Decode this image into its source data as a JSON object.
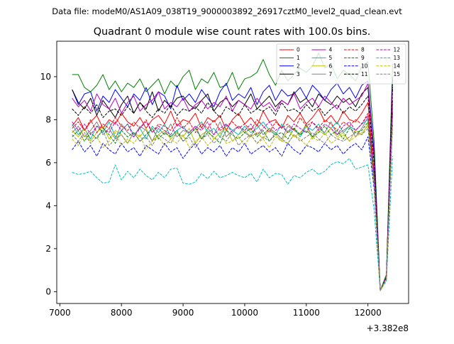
{
  "figure": {
    "suptitle": "Data file: modeM0/AS1A09_038T19_9000003892_26917cztM0_level2_quad_clean.evt"
  },
  "chart_data": {
    "type": "line",
    "title": "Quadrant 0 module wise count rates with 100.0s bins.",
    "xlabel": "",
    "ylabel": "",
    "x_offset_label": "+3.382e8",
    "xlim": [
      6950,
      12660
    ],
    "ylim": [
      -0.55,
      11.65
    ],
    "xticks": [
      7000,
      8000,
      9000,
      10000,
      11000,
      12000
    ],
    "yticks": [
      0,
      2,
      4,
      6,
      8,
      10
    ],
    "legend_position": "top-right",
    "legend_columns": 4,
    "x": [
      7200,
      7300,
      7400,
      7500,
      7600,
      7700,
      7800,
      7900,
      8000,
      8100,
      8200,
      8300,
      8400,
      8500,
      8600,
      8700,
      8800,
      8900,
      9000,
      9100,
      9200,
      9300,
      9400,
      9500,
      9600,
      9700,
      9800,
      9900,
      10000,
      10100,
      10200,
      10300,
      10400,
      10500,
      10600,
      10700,
      10800,
      10900,
      11000,
      11100,
      11200,
      11300,
      11400,
      11500,
      11600,
      11700,
      11800,
      11900,
      12000,
      12100,
      12200,
      12300,
      12400
    ],
    "series": [
      {
        "name": "0",
        "color": "#ff0000",
        "dash": "solid",
        "values": [
          7.7,
          8.1,
          7.5,
          7.9,
          8.2,
          7.6,
          8.0,
          7.8,
          8.3,
          7.9,
          7.7,
          8.1,
          7.6,
          8.0,
          8.2,
          7.8,
          8.4,
          7.7,
          8.0,
          7.9,
          8.3,
          7.6,
          8.1,
          7.9,
          8.2,
          7.5,
          8.0,
          8.3,
          7.8,
          8.1,
          7.7,
          8.4,
          7.9,
          8.0,
          7.6,
          8.2,
          7.9,
          8.3,
          7.8,
          8.1,
          8.5,
          7.9,
          8.2,
          7.8,
          8.4,
          8.0,
          7.9,
          8.3,
          8.8,
          5.5,
          0.05,
          0.7,
          9.8
        ]
      },
      {
        "name": "1",
        "color": "#008000",
        "dash": "solid",
        "values": [
          10.1,
          10.1,
          9.5,
          9.3,
          9.6,
          10.1,
          9.4,
          9.8,
          9.3,
          9.7,
          9.5,
          9.9,
          9.3,
          9.6,
          9.9,
          9.2,
          9.8,
          9.5,
          10.0,
          10.3,
          9.4,
          9.9,
          9.7,
          10.2,
          9.5,
          9.6,
          10.2,
          9.4,
          9.9,
          10.0,
          10.2,
          10.8,
          10.1,
          9.6,
          10.3,
          9.8,
          10.1,
          10.4,
          10.2,
          10.5,
          11.1,
          10.4,
          10.6,
          9.9,
          10.3,
          10.1,
          9.8,
          10.5,
          10.7,
          7.0,
          0.05,
          0.8,
          10.6
        ]
      },
      {
        "name": "2",
        "color": "#0000ff",
        "dash": "solid",
        "values": [
          9.4,
          8.7,
          9.2,
          9.3,
          8.4,
          9.1,
          8.8,
          9.4,
          9.0,
          8.6,
          9.2,
          8.9,
          9.5,
          8.7,
          9.3,
          9.1,
          8.5,
          9.6,
          8.9,
          9.2,
          8.8,
          9.4,
          9.0,
          8.6,
          9.3,
          9.7,
          8.9,
          9.2,
          9.0,
          9.5,
          8.7,
          9.3,
          9.6,
          8.9,
          9.4,
          9.1,
          9.2,
          9.5,
          9.0,
          9.6,
          9.3,
          8.9,
          9.4,
          9.7,
          9.2,
          9.5,
          9.0,
          9.6,
          9.8,
          6.5,
          0.05,
          0.7,
          10.0
        ]
      },
      {
        "name": "3",
        "color": "#000000",
        "dash": "solid",
        "values": [
          9.4,
          8.8,
          8.5,
          9.0,
          8.2,
          8.9,
          8.5,
          8.1,
          8.7,
          9.1,
          8.3,
          8.8,
          8.5,
          9.3,
          8.4,
          8.9,
          8.6,
          9.0,
          9.1,
          8.7,
          8.5,
          8.9,
          9.2,
          8.4,
          8.8,
          9.0,
          8.6,
          8.9,
          8.7,
          9.2,
          8.5,
          8.8,
          9.1,
          8.6,
          8.9,
          8.7,
          9.3,
          8.8,
          9.0,
          8.6,
          9.2,
          8.9,
          8.7,
          9.1,
          8.8,
          9.0,
          8.6,
          9.2,
          9.5,
          6.3,
          0.05,
          0.7,
          9.9
        ]
      },
      {
        "name": "4",
        "color": "#bf00bf",
        "dash": "solid",
        "values": [
          9.0,
          8.6,
          8.9,
          8.4,
          9.2,
          8.7,
          8.5,
          9.0,
          8.3,
          8.8,
          9.1,
          8.4,
          8.7,
          8.9,
          9.3,
          8.5,
          8.8,
          8.6,
          9.0,
          8.4,
          8.7,
          8.9,
          8.5,
          8.8,
          8.6,
          9.1,
          8.4,
          8.9,
          8.7,
          8.5,
          9.0,
          8.6,
          8.8,
          8.4,
          8.9,
          8.7,
          9.2,
          8.5,
          8.8,
          9.0,
          8.6,
          9.1,
          8.8,
          8.5,
          9.0,
          8.7,
          8.9,
          9.1,
          9.7,
          6.2,
          0.05,
          0.7,
          9.7
        ]
      },
      {
        "name": "5",
        "color": "#00bfbf",
        "dash": "solid",
        "values": [
          7.8,
          7.3,
          7.6,
          7.1,
          7.7,
          7.4,
          7.9,
          7.2,
          7.5,
          7.8,
          7.3,
          7.6,
          7.1,
          7.7,
          7.4,
          7.8,
          7.2,
          7.5,
          7.7,
          7.3,
          7.6,
          7.9,
          7.4,
          7.6,
          7.2,
          7.8,
          7.5,
          7.3,
          7.7,
          7.4,
          7.6,
          7.9,
          7.5,
          7.3,
          7.8,
          7.4,
          7.6,
          7.2,
          7.7,
          7.5,
          7.8,
          7.3,
          7.6,
          7.9,
          7.4,
          7.7,
          7.5,
          7.8,
          8.0,
          5.3,
          0.05,
          0.6,
          8.4
        ]
      },
      {
        "name": "6",
        "color": "#bfbf00",
        "dash": "solid",
        "values": [
          7.5,
          7.2,
          7.6,
          7.0,
          7.4,
          7.7,
          7.1,
          7.5,
          7.3,
          6.9,
          7.4,
          7.2,
          7.6,
          7.0,
          7.3,
          7.5,
          7.1,
          7.4,
          7.2,
          7.6,
          6.9,
          7.3,
          7.5,
          7.1,
          7.4,
          7.6,
          7.0,
          7.3,
          7.5,
          7.2,
          7.4,
          7.1,
          7.6,
          7.3,
          7.0,
          7.5,
          7.2,
          7.4,
          7.7,
          7.1,
          7.5,
          7.3,
          7.6,
          7.2,
          7.4,
          7.0,
          7.5,
          7.3,
          7.8,
          5.1,
          0.05,
          0.6,
          8.2
        ]
      },
      {
        "name": "7",
        "color": "#808080",
        "dash": "solid",
        "values": [
          7.4,
          7.7,
          7.2,
          7.5,
          7.9,
          7.3,
          7.6,
          7.1,
          7.8,
          7.4,
          7.2,
          7.7,
          7.5,
          7.0,
          7.6,
          7.3,
          7.8,
          7.2,
          7.5,
          7.4,
          7.7,
          7.1,
          7.6,
          7.3,
          7.9,
          7.2,
          7.5,
          7.7,
          7.4,
          7.2,
          7.8,
          7.3,
          7.6,
          7.4,
          7.1,
          7.7,
          7.5,
          7.3,
          7.8,
          7.2,
          7.6,
          7.4,
          7.9,
          7.3,
          7.5,
          7.7,
          7.2,
          7.6,
          8.1,
          5.4,
          0.05,
          0.7,
          8.6
        ]
      },
      {
        "name": "8",
        "color": "#ff0000",
        "dash": "dashed",
        "values": [
          7.6,
          7.9,
          7.5,
          8.0,
          7.4,
          7.8,
          7.6,
          8.1,
          7.7,
          7.5,
          7.9,
          7.6,
          8.0,
          7.4,
          7.8,
          7.7,
          7.5,
          8.1,
          7.6,
          7.9,
          7.4,
          7.8,
          7.6,
          8.0,
          7.5,
          7.7,
          7.9,
          7.6,
          7.8,
          7.5,
          8.0,
          7.7,
          7.4,
          7.9,
          7.6,
          7.8,
          7.5,
          8.1,
          7.7,
          7.9,
          7.6,
          8.0,
          7.8,
          7.5,
          7.9,
          7.7,
          8.0,
          7.8,
          8.3,
          5.6,
          0.05,
          0.7,
          8.9
        ]
      },
      {
        "name": "9",
        "color": "#008000",
        "dash": "dashed",
        "values": [
          7.2,
          7.5,
          7.0,
          7.4,
          7.1,
          7.6,
          7.3,
          6.9,
          7.5,
          7.2,
          7.4,
          7.0,
          7.3,
          7.6,
          7.1,
          7.4,
          7.2,
          7.5,
          7.0,
          7.3,
          7.6,
          7.1,
          7.4,
          7.2,
          6.9,
          7.5,
          7.3,
          7.1,
          7.4,
          7.6,
          7.2,
          7.5,
          7.0,
          7.3,
          7.4,
          7.1,
          7.6,
          7.3,
          7.5,
          7.2,
          7.4,
          7.7,
          7.3,
          7.5,
          7.1,
          7.6,
          7.4,
          7.5,
          7.9,
          5.2,
          0.05,
          0.6,
          8.3
        ]
      },
      {
        "name": "10",
        "color": "#0000ff",
        "dash": "dashed",
        "values": [
          6.6,
          7.0,
          6.5,
          6.8,
          6.3,
          6.9,
          6.6,
          6.4,
          6.9,
          6.5,
          6.7,
          6.3,
          6.8,
          6.6,
          6.4,
          6.9,
          6.5,
          6.7,
          6.2,
          6.6,
          6.9,
          6.4,
          6.7,
          6.5,
          6.8,
          6.3,
          6.7,
          6.5,
          6.9,
          6.4,
          6.6,
          6.8,
          6.5,
          6.7,
          6.3,
          6.9,
          6.6,
          6.4,
          6.8,
          6.7,
          6.5,
          6.9,
          6.6,
          6.8,
          6.4,
          6.7,
          6.9,
          6.6,
          7.2,
          4.8,
          0.05,
          0.6,
          7.8
        ]
      },
      {
        "name": "11",
        "color": "#000000",
        "dash": "dashed",
        "values": [
          8.5,
          8.2,
          8.6,
          8.3,
          8.7,
          8.1,
          8.4,
          8.5,
          8.2,
          8.6,
          8.3,
          8.8,
          8.4,
          8.1,
          8.5,
          8.3,
          8.7,
          8.2,
          8.5,
          8.4,
          8.6,
          8.3,
          8.8,
          8.4,
          8.1,
          8.6,
          8.4,
          8.2,
          8.7,
          8.3,
          8.5,
          8.4,
          8.6,
          8.2,
          8.8,
          8.4,
          8.5,
          8.3,
          8.7,
          8.4,
          8.6,
          8.2,
          8.5,
          8.7,
          8.3,
          8.6,
          8.4,
          8.7,
          9.1,
          6.0,
          0.05,
          0.7,
          9.5
        ]
      },
      {
        "name": "12",
        "color": "#bf00bf",
        "dash": "dashed",
        "values": [
          7.9,
          7.5,
          7.8,
          7.3,
          7.7,
          7.6,
          7.4,
          7.9,
          7.5,
          7.8,
          7.2,
          7.6,
          7.9,
          7.4,
          7.7,
          7.5,
          7.3,
          7.8,
          7.6,
          7.4,
          7.7,
          7.5,
          7.9,
          7.3,
          7.6,
          7.8,
          7.4,
          7.7,
          7.5,
          7.8,
          7.3,
          7.6,
          7.9,
          7.5,
          7.7,
          7.4,
          7.8,
          7.6,
          7.4,
          7.9,
          7.5,
          7.8,
          7.6,
          7.3,
          7.7,
          7.9,
          7.5,
          7.8,
          8.2,
          5.5,
          0.05,
          0.7,
          8.8
        ]
      },
      {
        "name": "13",
        "color": "#00bfbf",
        "dash": "dashed",
        "values": [
          5.55,
          5.45,
          5.5,
          5.6,
          5.3,
          5.05,
          5.1,
          5.9,
          5.2,
          5.6,
          5.3,
          5.7,
          5.4,
          5.2,
          5.55,
          5.3,
          5.7,
          5.75,
          5.05,
          5.0,
          5.1,
          5.5,
          5.25,
          5.6,
          5.3,
          5.4,
          5.55,
          5.4,
          5.3,
          5.5,
          5.1,
          5.7,
          5.3,
          5.5,
          5.45,
          5.0,
          5.4,
          5.3,
          5.55,
          5.7,
          5.45,
          5.6,
          5.9,
          6.05,
          5.95,
          6.2,
          5.7,
          5.8,
          5.9,
          3.8,
          0.05,
          0.5,
          6.3
        ]
      },
      {
        "name": "14",
        "color": "#bfbf00",
        "dash": "dashed",
        "values": [
          7.1,
          6.8,
          7.3,
          6.9,
          7.2,
          6.7,
          7.0,
          7.4,
          6.8,
          7.1,
          6.9,
          7.3,
          6.6,
          7.0,
          7.2,
          6.8,
          7.1,
          6.9,
          7.3,
          6.7,
          7.0,
          7.2,
          6.8,
          7.1,
          7.4,
          6.9,
          7.0,
          7.2,
          6.8,
          7.3,
          6.9,
          7.1,
          6.7,
          7.2,
          7.0,
          6.9,
          7.3,
          7.1,
          6.8,
          7.2,
          7.0,
          7.4,
          6.9,
          7.1,
          7.3,
          7.0,
          7.2,
          7.4,
          7.7,
          5.0,
          0.05,
          0.6,
          8.0
        ]
      },
      {
        "name": "15",
        "color": "#808080",
        "dash": "dashed",
        "values": [
          7.3,
          7.0,
          7.4,
          6.9,
          7.2,
          7.5,
          6.8,
          7.1,
          7.3,
          6.9,
          7.4,
          7.0,
          7.2,
          6.8,
          7.3,
          7.1,
          6.9,
          7.4,
          7.0,
          7.2,
          6.7,
          7.1,
          7.3,
          6.9,
          7.2,
          7.0,
          7.4,
          6.8,
          7.1,
          7.3,
          6.9,
          7.2,
          7.0,
          7.4,
          7.1,
          6.9,
          7.3,
          7.0,
          7.2,
          7.4,
          7.1,
          6.9,
          7.3,
          7.1,
          7.0,
          7.2,
          7.4,
          7.3,
          7.6,
          5.1,
          0.05,
          0.6,
          8.1
        ]
      }
    ]
  }
}
